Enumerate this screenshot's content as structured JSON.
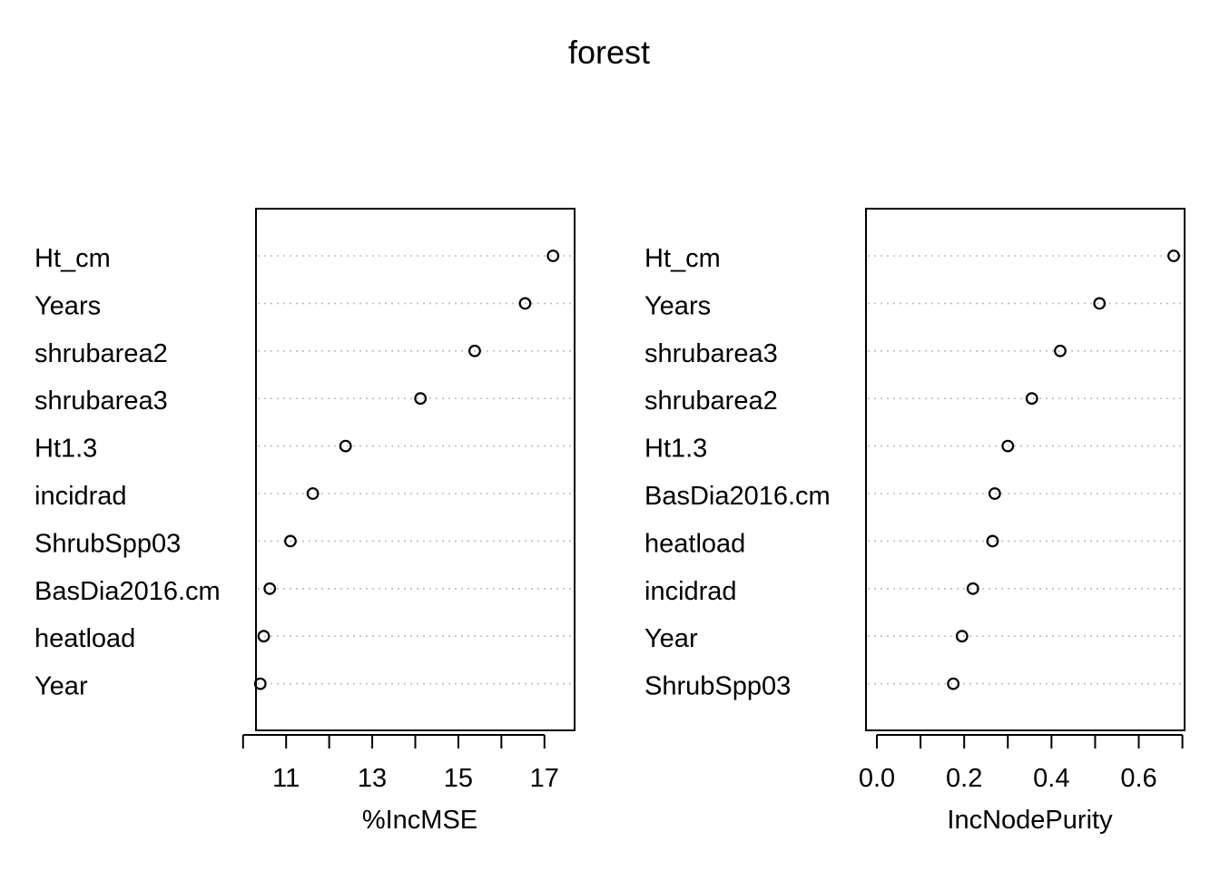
{
  "chart_data": {
    "title": "forest",
    "panels": [
      {
        "type": "scatter",
        "xlabel": "%IncMSE",
        "xlim": [
          10.3,
          17.7
        ],
        "xticks": [
          10,
          11,
          12,
          13,
          14,
          15,
          16,
          17
        ],
        "xticklabels": [
          "11",
          "13",
          "15",
          "17"
        ],
        "xticklabel_values": [
          11,
          13,
          15,
          17
        ],
        "variables": [
          "Ht_cm",
          "Years",
          "shrubarea2",
          "shrubarea3",
          "Ht1.3",
          "incidrad",
          "ShrubSpp03",
          "BasDia2016.cm",
          "heatload",
          "Year"
        ],
        "values": [
          17.2,
          16.55,
          15.38,
          14.12,
          12.38,
          11.62,
          11.1,
          10.62,
          10.48,
          10.4
        ]
      },
      {
        "type": "scatter",
        "xlabel": "IncNodePurity",
        "xlim": [
          -0.025,
          0.705
        ],
        "xticks": [
          0.0,
          0.1,
          0.2,
          0.3,
          0.4,
          0.5,
          0.6,
          0.7
        ],
        "xticklabels": [
          "0.0",
          "0.2",
          "0.4",
          "0.6"
        ],
        "xticklabel_values": [
          0.0,
          0.2,
          0.4,
          0.6
        ],
        "variables": [
          "Ht_cm",
          "Years",
          "shrubarea3",
          "shrubarea2",
          "Ht1.3",
          "BasDia2016.cm",
          "heatload",
          "incidrad",
          "Year",
          "ShrubSpp03"
        ],
        "values": [
          0.68,
          0.51,
          0.42,
          0.355,
          0.3,
          0.27,
          0.265,
          0.22,
          0.195,
          0.175
        ]
      }
    ]
  }
}
